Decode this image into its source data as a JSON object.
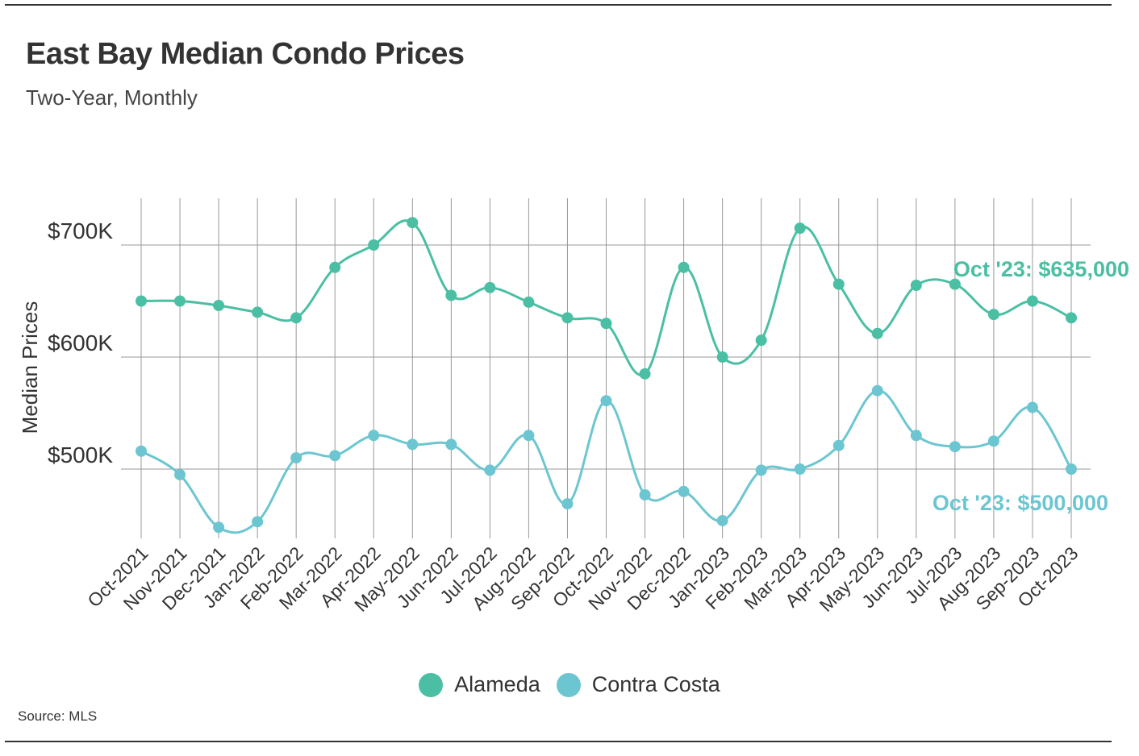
{
  "header": {
    "title": "East Bay Median Condo Prices",
    "subtitle": "Two-Year, Monthly"
  },
  "footer": {
    "source": "Source: MLS"
  },
  "colors": {
    "alameda": "#4abfa3",
    "contra_costa": "#6cc6d1",
    "grid": "#999999",
    "text": "#333333"
  },
  "chart_data": {
    "type": "line",
    "ylabel": "Median Prices",
    "xlabel": "",
    "ylim": [
      455000,
      740000
    ],
    "y_ticks": [
      {
        "value": 500000,
        "label": "$500K"
      },
      {
        "value": 600000,
        "label": "$600K"
      },
      {
        "value": 700000,
        "label": "$700K"
      }
    ],
    "grid": true,
    "legend": "bottom-center",
    "categories": [
      "Oct-2021",
      "Nov-2021",
      "Dec-2021",
      "Jan-2022",
      "Feb-2022",
      "Mar-2022",
      "Apr-2022",
      "May-2022",
      "Jun-2022",
      "Jul-2022",
      "Aug-2022",
      "Sep-2022",
      "Oct-2022",
      "Nov-2022",
      "Dec-2022",
      "Jan-2023",
      "Feb-2023",
      "Mar-2023",
      "Apr-2023",
      "May-2023",
      "Jun-2023",
      "Jul-2023",
      "Aug-2023",
      "Sep-2023",
      "Oct-2023"
    ],
    "series": [
      {
        "name": "Alameda",
        "color": "#4abfa3",
        "values": [
          650000,
          650000,
          646000,
          640000,
          635000,
          680000,
          700000,
          720000,
          655000,
          662000,
          649000,
          635000,
          630000,
          585000,
          680000,
          600000,
          615000,
          715000,
          665000,
          621000,
          664000,
          665000,
          638000,
          650000,
          635000
        ],
        "annotation": "Oct '23: $635,000"
      },
      {
        "name": "Contra Costa",
        "color": "#6cc6d1",
        "values": [
          516000,
          495000,
          448000,
          453000,
          510000,
          512000,
          530000,
          522000,
          522000,
          499000,
          530000,
          469000,
          561000,
          477000,
          480000,
          454000,
          499000,
          500000,
          521000,
          570000,
          530000,
          520000,
          525000,
          555000,
          500000
        ],
        "annotation": "Oct '23: $500,000"
      }
    ]
  }
}
